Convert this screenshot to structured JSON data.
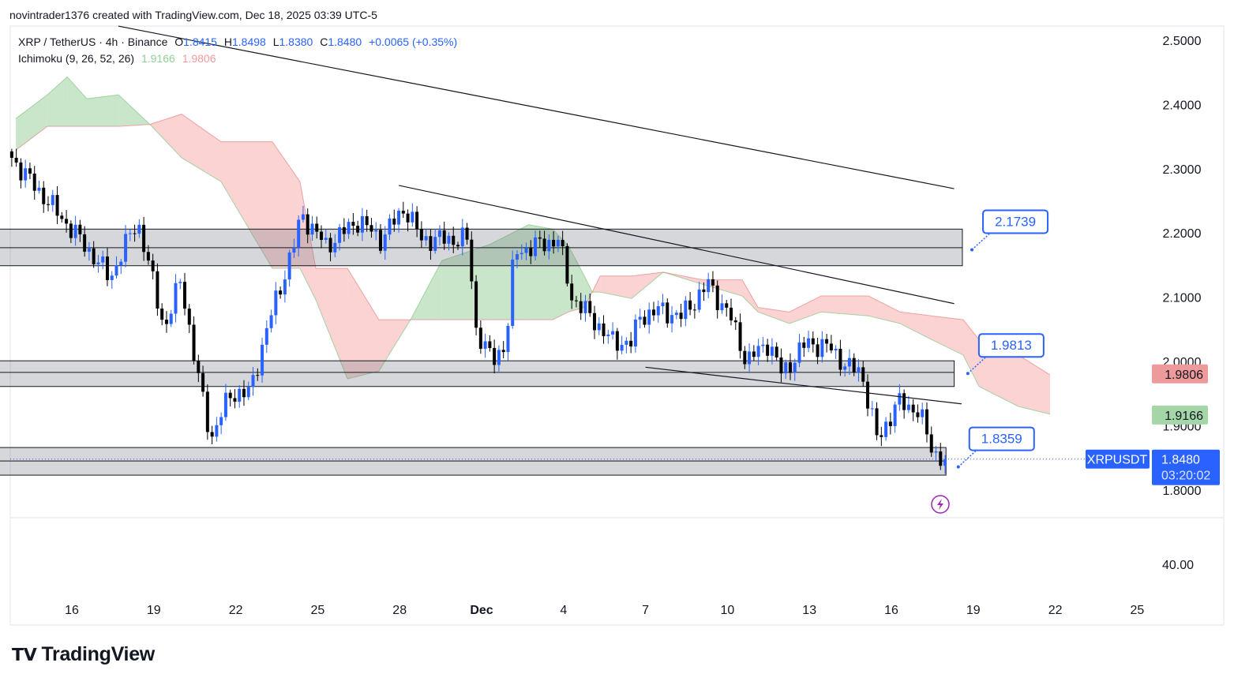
{
  "header": {
    "attribution": "novintrader1376 created with TradingView.com, Dec 18, 2025 03:39 UTC-5"
  },
  "legend": {
    "symbol": "XRP / TetherUS · 4h · Binance",
    "open_label": "O",
    "open": "1.8415",
    "high_label": "H",
    "high": "1.8498",
    "low_label": "L",
    "low": "1.8380",
    "close_label": "C",
    "close": "1.8480",
    "change": "+0.0065 (+0.35%)",
    "indicator": "Ichimoku (9, 26, 52, 26)",
    "ind_val1": "1.9166",
    "ind_val2": "1.9806"
  },
  "logo": {
    "text": "TradingView"
  },
  "colors": {
    "up": "#2962ff",
    "down": "#000000",
    "cloud_green": "#a5d6a7",
    "cloud_red": "#f7a8a8",
    "accent": "#2962ff"
  },
  "chart_data": {
    "type": "candlestick",
    "title": "XRP / TetherUS · 4h · Binance",
    "time_unit": "day index (Nov 1 = 1, Dec 1 = 31)",
    "x_ticks": [
      {
        "t": 16,
        "label": "16"
      },
      {
        "t": 19,
        "label": "19"
      },
      {
        "t": 22,
        "label": "22"
      },
      {
        "t": 25,
        "label": "25"
      },
      {
        "t": 28,
        "label": "28"
      },
      {
        "t": 31,
        "label": "Dec"
      },
      {
        "t": 34,
        "label": "4"
      },
      {
        "t": 37,
        "label": "7"
      },
      {
        "t": 40,
        "label": "10"
      },
      {
        "t": 43,
        "label": "13"
      },
      {
        "t": 46,
        "label": "16"
      },
      {
        "t": 49,
        "label": "19"
      },
      {
        "t": 52,
        "label": "22"
      },
      {
        "t": 55,
        "label": "25"
      }
    ],
    "y_ticks": [
      "2.5000",
      "2.4000",
      "2.3000",
      "2.2000",
      "2.1000",
      "2.0000",
      "1.9000",
      "1.8000"
    ],
    "ylim": [
      1.8,
      2.5
    ],
    "indicator_pane_tick": "40.00",
    "close_path": [
      [
        13.8,
        2.317
      ],
      [
        14.5,
        2.28
      ],
      [
        16.3,
        2.19
      ],
      [
        17.4,
        2.13
      ],
      [
        18.4,
        2.22
      ],
      [
        19.4,
        2.05
      ],
      [
        20.0,
        2.13
      ],
      [
        20.5,
        2.0
      ],
      [
        21.1,
        1.88
      ],
      [
        21.8,
        1.95
      ],
      [
        22.5,
        1.95
      ],
      [
        23.2,
        2.06
      ],
      [
        24.2,
        2.19
      ],
      [
        24.4,
        2.23
      ],
      [
        25.3,
        2.18
      ],
      [
        26.5,
        2.22
      ],
      [
        27.3,
        2.19
      ],
      [
        28.2,
        2.24
      ],
      [
        28.8,
        2.19
      ],
      [
        30.5,
        2.19
      ],
      [
        30.8,
        2.05
      ],
      [
        31.4,
        2.0
      ],
      [
        31.9,
        2.03
      ],
      [
        32.2,
        2.17
      ],
      [
        33.8,
        2.19
      ],
      [
        34.3,
        2.1
      ],
      [
        35.2,
        2.06
      ],
      [
        35.8,
        2.03
      ],
      [
        36.5,
        2.03
      ],
      [
        36.8,
        2.07
      ],
      [
        37.5,
        2.08
      ],
      [
        38.3,
        2.07
      ],
      [
        39.3,
        2.12
      ],
      [
        40.1,
        2.07
      ],
      [
        40.7,
        2.0
      ],
      [
        41.5,
        2.03
      ],
      [
        42.0,
        1.98
      ],
      [
        42.9,
        2.03
      ],
      [
        43.8,
        2.02
      ],
      [
        44.4,
        1.99
      ],
      [
        44.9,
        1.985
      ],
      [
        45.5,
        1.875
      ],
      [
        46.2,
        1.936
      ],
      [
        47.0,
        1.924
      ],
      [
        47.5,
        1.86
      ],
      [
        47.97,
        1.848
      ]
    ],
    "ichimoku_cloud": [
      [
        13.95,
        2.378,
        2.329
      ],
      [
        15.1,
        2.415,
        2.366
      ],
      [
        15.83,
        2.443,
        2.366
      ],
      [
        16.55,
        2.409,
        2.366
      ],
      [
        17.71,
        2.415,
        2.366
      ],
      [
        18.86,
        2.369,
        2.369
      ],
      [
        20.02,
        2.317,
        2.385
      ],
      [
        21.46,
        2.28,
        2.342
      ],
      [
        23.34,
        2.145,
        2.342
      ],
      [
        24.35,
        2.145,
        2.28
      ],
      [
        24.93,
        2.096,
        2.145
      ],
      [
        26.09,
        1.973,
        2.145
      ],
      [
        27.24,
        1.985,
        2.065
      ],
      [
        28.4,
        2.065,
        2.065
      ],
      [
        29.55,
        2.157,
        2.065
      ],
      [
        31.29,
        2.182,
        2.065
      ],
      [
        32.73,
        2.213,
        2.065
      ],
      [
        33.6,
        2.206,
        2.065
      ],
      [
        34.18,
        2.18,
        2.077
      ],
      [
        34.76,
        2.133,
        2.084
      ],
      [
        35.05,
        2.108,
        2.108
      ],
      [
        35.34,
        2.108,
        2.133
      ],
      [
        36.49,
        2.098,
        2.133
      ],
      [
        37.65,
        2.139,
        2.139
      ],
      [
        39.09,
        2.12,
        2.127
      ],
      [
        40.54,
        2.102,
        2.127
      ],
      [
        41.12,
        2.077,
        2.084
      ],
      [
        42.27,
        2.059,
        2.077
      ],
      [
        43.43,
        2.077,
        2.102
      ],
      [
        45.16,
        2.071,
        2.102
      ],
      [
        46.32,
        2.059,
        2.077
      ],
      [
        47.47,
        2.034,
        2.071
      ],
      [
        48.63,
        2.01,
        2.065
      ],
      [
        49.21,
        1.961,
        2.034
      ],
      [
        50.65,
        1.93,
        2.01
      ],
      [
        51.81,
        1.918,
        1.979
      ]
    ],
    "zones": [
      {
        "t0": 12.5,
        "t1": 48.6,
        "top": 2.206,
        "bottom": 2.149,
        "mid": 2.177
      },
      {
        "t0": 12.5,
        "t1": 48.3,
        "top": 2.001,
        "bottom": 1.961,
        "mid": 1.983
      },
      {
        "t0": 12.5,
        "t1": 48.0,
        "top": 1.866,
        "bottom": 1.823,
        "mid": 1.845
      }
    ],
    "trendlines": [
      {
        "t0": 17.7,
        "p0": 2.522,
        "t1": 48.3,
        "p1": 2.269
      },
      {
        "t0": 27.97,
        "p0": 2.274,
        "t1": 48.3,
        "p1": 2.09
      },
      {
        "t0": 37.0,
        "p0": 1.991,
        "t1": 48.57,
        "p1": 1.934
      }
    ],
    "callouts": [
      {
        "label": "2.1739",
        "t": 48.95,
        "p": 2.1739
      },
      {
        "label": "1.9813",
        "t": 48.8,
        "p": 1.9813
      },
      {
        "label": "1.8359",
        "t": 48.45,
        "p": 1.8359
      }
    ],
    "axis_labels": [
      {
        "text": "1.9806",
        "p": 1.9806,
        "bg": "#ef9a9a",
        "fg": "#131722"
      },
      {
        "text": "1.9166",
        "p": 1.9166,
        "bg": "#a5d6a7",
        "fg": "#131722"
      }
    ],
    "last_price": {
      "symbol": "XRPUSDT",
      "price": "1.8480",
      "value": 1.848,
      "countdown": "03:20:02"
    }
  }
}
